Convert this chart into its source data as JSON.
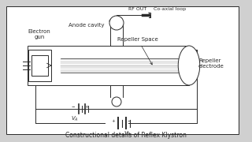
{
  "bg_color": "#d0d0d0",
  "box_color": "#ffffff",
  "line_color": "#2a2a2a",
  "gray_color": "#999999",
  "title": "Constructional details of Reflex Klystron",
  "labels": {
    "electron_gun": "Electron\ngun",
    "anode_cavity": "Anode cavity",
    "rf_out": "RF OUT",
    "coaxial_loop": "Co-axial loop",
    "repeller_space": "Repeller Space",
    "repeller_electrode": "Repeller\nelectrode",
    "va": "$V_A$",
    "vr": "$V_R$"
  },
  "title_fontsize": 5.5,
  "label_fontsize": 5.0
}
